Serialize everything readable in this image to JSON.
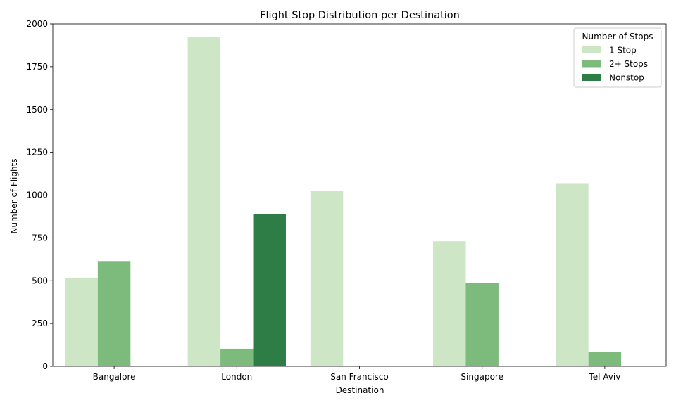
{
  "chart_data": {
    "type": "bar",
    "title": "Flight Stop Distribution per Destination",
    "xlabel": "Destination",
    "ylabel": "Number of Flights",
    "categories": [
      "Bangalore",
      "London",
      "San Francisco",
      "Singapore",
      "Tel Aviv"
    ],
    "series": [
      {
        "name": "1 Stop",
        "color": "#cce6c6",
        "values": [
          515,
          1925,
          1025,
          730,
          1070
        ]
      },
      {
        "name": "2+ Stops",
        "color": "#7dbb7d",
        "values": [
          615,
          103,
          0,
          485,
          83
        ]
      },
      {
        "name": "Nonstop",
        "color": "#2e7d47",
        "values": [
          0,
          890,
          0,
          0,
          0
        ]
      }
    ],
    "ylim": [
      0,
      2000
    ],
    "yticks": [
      0,
      250,
      500,
      750,
      1000,
      1250,
      1500,
      1750,
      2000
    ],
    "legend": {
      "title": "Number of Stops",
      "placement": "top-right"
    },
    "grid": false
  }
}
